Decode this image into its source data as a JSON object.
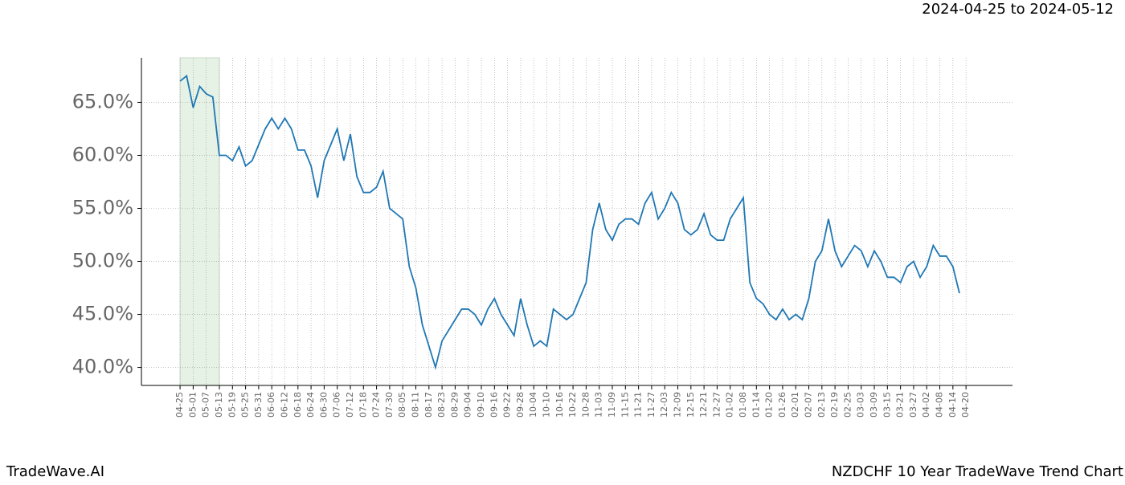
{
  "chart_data": {
    "type": "line",
    "title": "2024-04-25 to 2024-05-12",
    "footer_left": "TradeWave.AI",
    "footer_right": "NZDCHF 10 Year TradeWave Trend Chart",
    "x": [
      0,
      3,
      6,
      9,
      12,
      15,
      18,
      21,
      24,
      27,
      30,
      33,
      36,
      39,
      42,
      45,
      48,
      51,
      54,
      57,
      60,
      63,
      66,
      69,
      72,
      75,
      78,
      81,
      84,
      87,
      90,
      93,
      96,
      99,
      102,
      105,
      108,
      111,
      114,
      117,
      120,
      123,
      126,
      129,
      132,
      135,
      138,
      141,
      144,
      147,
      150,
      153,
      156,
      159,
      162,
      165,
      168,
      171,
      174,
      177,
      180,
      183,
      186,
      189,
      192,
      195,
      198,
      201,
      204,
      207,
      210,
      213,
      216,
      219,
      222,
      225,
      228,
      231,
      234,
      237,
      240,
      243,
      246,
      249,
      252,
      255,
      258,
      261,
      264,
      267,
      270,
      273,
      276,
      279,
      282,
      285,
      288,
      291,
      294,
      297,
      300,
      303,
      306,
      309,
      312,
      315,
      318,
      321,
      324,
      327,
      330,
      333,
      336,
      339,
      342,
      345,
      348,
      351,
      354,
      357
    ],
    "series": [
      {
        "color": "#1f77b4",
        "values": [
          67.0,
          67.5,
          64.5,
          66.5,
          65.8,
          65.5,
          60.0,
          60.0,
          59.5,
          60.8,
          59.0,
          59.5,
          61.0,
          62.5,
          63.5,
          62.5,
          63.5,
          62.5,
          60.5,
          60.5,
          59.0,
          56.0,
          59.5,
          61.0,
          62.5,
          59.5,
          62.0,
          58.0,
          56.5,
          56.5,
          57.0,
          58.5,
          55.0,
          54.5,
          54.0,
          49.5,
          47.5,
          44.0,
          42.0,
          40.0,
          42.5,
          43.5,
          44.5,
          45.5,
          45.5,
          45.0,
          44.0,
          45.5,
          46.5,
          45.0,
          44.0,
          43.0,
          46.5,
          44.0,
          42.0,
          42.5,
          42.0,
          45.5,
          45.0,
          44.5,
          45.0,
          46.5,
          48.0,
          53.0,
          55.5,
          53.0,
          52.0,
          53.5,
          54.0,
          54.0,
          53.5,
          55.5,
          56.5,
          54.0,
          55.0,
          56.5,
          55.5,
          53.0,
          52.5,
          53.0,
          54.5,
          52.5,
          52.0,
          52.0,
          54.0,
          55.0,
          56.0,
          48.0,
          46.5,
          46.0,
          45.0,
          44.5,
          45.5,
          44.5,
          45.0,
          44.5,
          46.5,
          50.0,
          51.0,
          54.0,
          51.0,
          49.5,
          50.5,
          51.5,
          51.0,
          49.5,
          51.0,
          50.0,
          48.5,
          48.5,
          48.0,
          49.5,
          50.0,
          48.5,
          49.5,
          51.5,
          50.5,
          50.5,
          49.5,
          47.0
        ]
      }
    ],
    "xlim": [
      -17.7,
      381.3
    ],
    "ylim": [
      38.3,
      69.2
    ],
    "xticks": [
      {
        "value": 0,
        "label": "04-25"
      },
      {
        "value": 6,
        "label": "05-01"
      },
      {
        "value": 12,
        "label": "05-07"
      },
      {
        "value": 18,
        "label": "05-13"
      },
      {
        "value": 24,
        "label": "05-19"
      },
      {
        "value": 30,
        "label": "05-25"
      },
      {
        "value": 36,
        "label": "05-31"
      },
      {
        "value": 42,
        "label": "06-06"
      },
      {
        "value": 48,
        "label": "06-12"
      },
      {
        "value": 54,
        "label": "06-18"
      },
      {
        "value": 60,
        "label": "06-24"
      },
      {
        "value": 66,
        "label": "06-30"
      },
      {
        "value": 72,
        "label": "07-06"
      },
      {
        "value": 78,
        "label": "07-12"
      },
      {
        "value": 84,
        "label": "07-18"
      },
      {
        "value": 90,
        "label": "07-24"
      },
      {
        "value": 96,
        "label": "07-30"
      },
      {
        "value": 102,
        "label": "08-05"
      },
      {
        "value": 108,
        "label": "08-11"
      },
      {
        "value": 114,
        "label": "08-17"
      },
      {
        "value": 120,
        "label": "08-23"
      },
      {
        "value": 126,
        "label": "08-29"
      },
      {
        "value": 132,
        "label": "09-04"
      },
      {
        "value": 138,
        "label": "09-10"
      },
      {
        "value": 144,
        "label": "09-16"
      },
      {
        "value": 150,
        "label": "09-22"
      },
      {
        "value": 156,
        "label": "09-28"
      },
      {
        "value": 162,
        "label": "10-04"
      },
      {
        "value": 168,
        "label": "10-10"
      },
      {
        "value": 174,
        "label": "10-16"
      },
      {
        "value": 180,
        "label": "10-22"
      },
      {
        "value": 186,
        "label": "10-28"
      },
      {
        "value": 192,
        "label": "11-03"
      },
      {
        "value": 198,
        "label": "11-09"
      },
      {
        "value": 204,
        "label": "11-15"
      },
      {
        "value": 210,
        "label": "11-21"
      },
      {
        "value": 216,
        "label": "11-27"
      },
      {
        "value": 222,
        "label": "12-03"
      },
      {
        "value": 228,
        "label": "12-09"
      },
      {
        "value": 234,
        "label": "12-15"
      },
      {
        "value": 240,
        "label": "12-21"
      },
      {
        "value": 246,
        "label": "12-27"
      },
      {
        "value": 252,
        "label": "01-02"
      },
      {
        "value": 258,
        "label": "01-08"
      },
      {
        "value": 264,
        "label": "01-14"
      },
      {
        "value": 270,
        "label": "01-20"
      },
      {
        "value": 276,
        "label": "01-26"
      },
      {
        "value": 282,
        "label": "02-01"
      },
      {
        "value": 288,
        "label": "02-07"
      },
      {
        "value": 294,
        "label": "02-13"
      },
      {
        "value": 300,
        "label": "02-19"
      },
      {
        "value": 306,
        "label": "02-25"
      },
      {
        "value": 312,
        "label": "03-03"
      },
      {
        "value": 318,
        "label": "03-09"
      },
      {
        "value": 324,
        "label": "03-15"
      },
      {
        "value": 330,
        "label": "03-21"
      },
      {
        "value": 336,
        "label": "03-27"
      },
      {
        "value": 342,
        "label": "04-02"
      },
      {
        "value": 348,
        "label": "04-08"
      },
      {
        "value": 354,
        "label": "04-14"
      },
      {
        "value": 360,
        "label": "04-20"
      }
    ],
    "yticks": [
      {
        "value": 40,
        "label": "40.0%"
      },
      {
        "value": 45,
        "label": "45.0%"
      },
      {
        "value": 50,
        "label": "50.0%"
      },
      {
        "value": 55,
        "label": "55.0%"
      },
      {
        "value": 60,
        "label": "60.0%"
      },
      {
        "value": 65,
        "label": "65.0%"
      }
    ],
    "highlight_x": [
      0,
      18
    ],
    "highlight_color": "#e5f2e5",
    "grid": true
  }
}
